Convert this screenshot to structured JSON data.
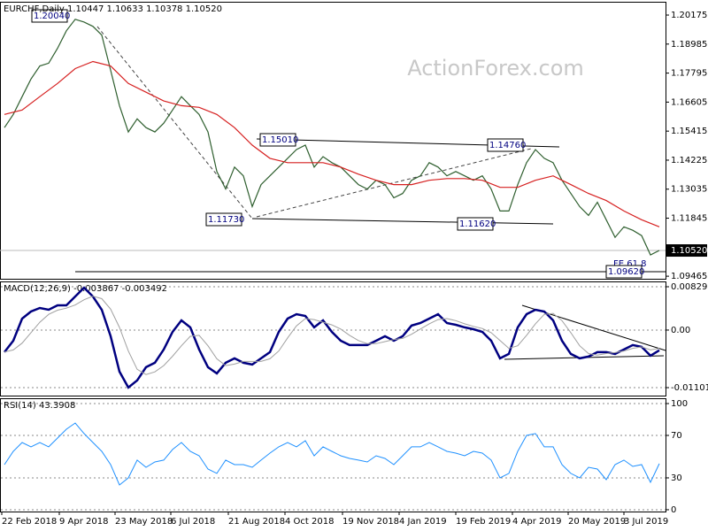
{
  "chart_data": [
    {
      "type": "line",
      "title": "EURCHF,Daily  1.10447 1.10633 1.10378 1.10520",
      "watermark": "ActionForex.com",
      "xlim": [
        -0.5,
        75
      ],
      "ylim": [
        1.0936,
        1.2072
      ],
      "yticks": [
        1.20175,
        1.18985,
        1.17795,
        1.16605,
        1.15415,
        1.14225,
        1.13035,
        1.11845,
        1.09465
      ],
      "price_marker": {
        "value": 1.1052,
        "label": "1.10520"
      },
      "annotations": [
        "1.20040",
        "1.15010",
        "1.14760",
        "1.11730",
        "1.11620",
        "1.09620",
        "FE 61.8"
      ],
      "grid": false,
      "series": [
        {
          "color": "#2f5f2f",
          "values": [
            1.1556,
            1.161,
            1.1683,
            1.1755,
            1.1809,
            1.182,
            1.1881,
            1.1953,
            1.2,
            1.1989,
            1.1971,
            1.1935,
            1.1791,
            1.1646,
            1.1538,
            1.1592,
            1.1556,
            1.1538,
            1.1574,
            1.1628,
            1.1683,
            1.1646,
            1.161,
            1.1538,
            1.1376,
            1.1304,
            1.1394,
            1.1358,
            1.1232,
            1.1322,
            1.1358,
            1.1394,
            1.143,
            1.1466,
            1.1484,
            1.1394,
            1.1437,
            1.1412,
            1.1394,
            1.1358,
            1.1322,
            1.1304,
            1.134,
            1.1322,
            1.1268,
            1.1286,
            1.134,
            1.1358,
            1.1412,
            1.1394,
            1.1358,
            1.1376,
            1.1358,
            1.134,
            1.1358,
            1.1304,
            1.1214,
            1.1214,
            1.1322,
            1.1412,
            1.1466,
            1.143,
            1.1412,
            1.134,
            1.1286,
            1.1232,
            1.1196,
            1.125,
            1.1178,
            1.1106,
            1.1149,
            1.1135,
            1.1113,
            1.1034,
            1.1052
          ]
        },
        {
          "color": "#d62020",
          "x": [
            0,
            2,
            4,
            6,
            8,
            10,
            12,
            14,
            16,
            18,
            20,
            22,
            24,
            26,
            28,
            30,
            32,
            34,
            36,
            38,
            40,
            42,
            44,
            46,
            48,
            50,
            52,
            54,
            56,
            58,
            60,
            62,
            64,
            66,
            68,
            70,
            72,
            74
          ],
          "values": [
            1.161,
            1.1628,
            1.1683,
            1.1737,
            1.1798,
            1.1827,
            1.1809,
            1.1737,
            1.1701,
            1.1665,
            1.1646,
            1.1639,
            1.161,
            1.1556,
            1.1484,
            1.143,
            1.1412,
            1.1412,
            1.1412,
            1.1394,
            1.1365,
            1.134,
            1.1322,
            1.1322,
            1.134,
            1.1347,
            1.1347,
            1.134,
            1.1311,
            1.1311,
            1.134,
            1.1358,
            1.1322,
            1.1286,
            1.1257,
            1.1214,
            1.1178,
            1.1149
          ]
        }
      ]
    },
    {
      "type": "line",
      "title": "MACD(12,26,9) -0.003867 -0.003492",
      "xlim": [
        -0.5,
        75
      ],
      "ylim": [
        -0.012536,
        0.009306
      ],
      "yticks": [
        0.008292,
        {
          "value": 0,
          "label": "0.00"
        },
        -0.011015
      ],
      "grid": true,
      "series": [
        {
          "color": "#000080",
          "values": [
            -0.00423,
            -0.00203,
            0.0022,
            0.00355,
            0.00423,
            0.00389,
            0.00473,
            0.00473,
            0.00642,
            0.00811,
            0.00642,
            0.00389,
            -0.00118,
            -0.00794,
            -0.01099,
            -0.00963,
            -0.0071,
            -0.00625,
            -0.00372,
            -0.00034,
            0.00186,
            0.00051,
            -0.00372,
            -0.0071,
            -0.00828,
            -0.00625,
            -0.00541,
            -0.00625,
            -0.00659,
            -0.00541,
            -0.00423,
            -0.00034,
            0.0022,
            0.00304,
            0.0027,
            0.00051,
            0.00186,
            -0.00034,
            -0.00203,
            -0.00287,
            -0.00287,
            -0.00287,
            -0.00203,
            -0.00118,
            -0.00203,
            -0.00118,
            0.00085,
            0.00135,
            0.0022,
            0.00304,
            0.00135,
            0.00101,
            0.00051,
            0.00017,
            -0.00034,
            -0.00203,
            -0.00541,
            -0.00456,
            0.00051,
            0.00304,
            0.00389,
            0.00355,
            0.00186,
            -0.00203,
            -0.00456,
            -0.00541,
            -0.00507,
            -0.00423,
            -0.00423,
            -0.00456,
            -0.00372,
            -0.00287,
            -0.00321,
            -0.0049,
            -0.003867
          ]
        },
        {
          "color": "#a0a0a0",
          "values": [
            -0.0042,
            -0.0038,
            -0.0025,
            -0.0005,
            0.0015,
            0.003,
            0.0038,
            0.0042,
            0.0048,
            0.0058,
            0.0065,
            0.006,
            0.004,
            0.0005,
            -0.004,
            -0.0075,
            -0.0085,
            -0.008,
            -0.0068,
            -0.005,
            -0.003,
            -0.0012,
            -0.001,
            -0.003,
            -0.0055,
            -0.0068,
            -0.0065,
            -0.006,
            -0.006,
            -0.006,
            -0.0055,
            -0.004,
            -0.0015,
            0.0008,
            0.0022,
            0.002,
            0.0015,
            0.001,
            0.0002,
            -0.001,
            -0.002,
            -0.0026,
            -0.0026,
            -0.0022,
            -0.0018,
            -0.0016,
            -0.0008,
            0.0002,
            0.0012,
            0.002,
            0.0022,
            0.0018,
            0.0012,
            0.0007,
            0.0003,
            -0.0005,
            -0.002,
            -0.0035,
            -0.003,
            -0.001,
            0.0012,
            0.003,
            0.0032,
            0.0018,
            -0.0005,
            -0.003,
            -0.0045,
            -0.0048,
            -0.0045,
            -0.0043,
            -0.004,
            -0.0035,
            -0.0032,
            -0.0038,
            -0.003492
          ]
        }
      ]
    },
    {
      "type": "line",
      "title": "RSI(14) 43.3908",
      "xlim": [
        -0.5,
        75
      ],
      "ylim": [
        -1.7,
        105
      ],
      "yticks": [
        100,
        70,
        30,
        0
      ],
      "grid": true,
      "xticks": [
        {
          "value": -0.3,
          "label": "22 Feb 2018"
        },
        {
          "value": 6.2,
          "label": "9 Apr 2018"
        },
        {
          "value": 12.5,
          "label": "23 May 2018"
        },
        {
          "value": 18.8,
          "label": "6 Jul 2018"
        },
        {
          "value": 25.3,
          "label": "21 Aug 2018"
        },
        {
          "value": 31.7,
          "label": "4 Oct 2018"
        },
        {
          "value": 38.2,
          "label": "19 Nov 2018"
        },
        {
          "value": 44.6,
          "label": "4 Jan 2019"
        },
        {
          "value": 51,
          "label": "19 Feb 2019"
        },
        {
          "value": 57.4,
          "label": "4 Apr 2019"
        },
        {
          "value": 63.7,
          "label": "20 May 2019"
        },
        {
          "value": 70,
          "label": "3 Jul 2019"
        }
      ],
      "series": [
        {
          "color": "#1e90ff",
          "values": [
            42.5,
            55,
            63.3,
            59.2,
            63.3,
            59.2,
            67.5,
            75.8,
            81.7,
            71.7,
            63.3,
            55,
            42.5,
            23.3,
            30,
            46.7,
            40,
            45,
            46.7,
            56.7,
            63.3,
            55,
            50.8,
            38.3,
            34.2,
            46.7,
            42.5,
            42.5,
            40,
            46.7,
            53.3,
            59.2,
            63.3,
            59.2,
            65,
            50.8,
            59.2,
            55,
            50.8,
            48.3,
            46.7,
            45,
            50.8,
            48.3,
            42.5,
            50.8,
            59.2,
            59.2,
            63.3,
            59.2,
            55,
            53.3,
            50.8,
            55,
            53.3,
            46.7,
            30,
            34.2,
            55,
            70,
            71.7,
            59.2,
            59.2,
            42.5,
            34.2,
            30,
            40,
            38.3,
            28.3,
            42.5,
            46.7,
            40.8,
            42.5,
            25.8,
            43.3908
          ]
        }
      ]
    }
  ]
}
